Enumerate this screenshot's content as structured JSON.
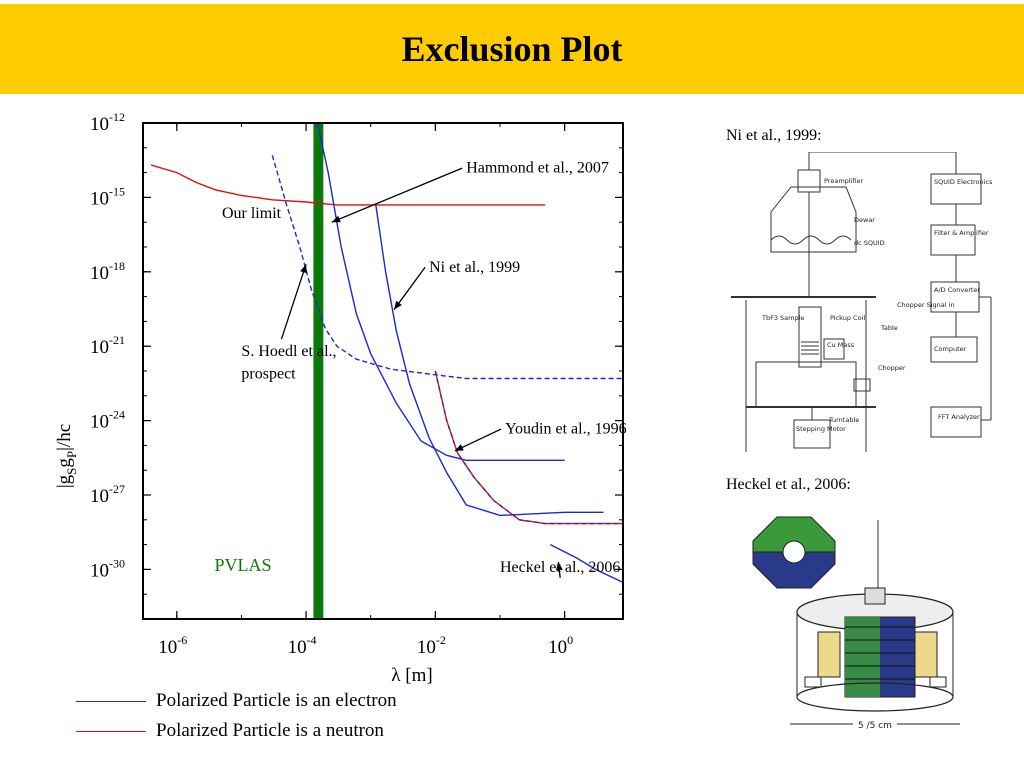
{
  "slide": {
    "title": "Exclusion Plot"
  },
  "chart_data": {
    "type": "line",
    "title": "",
    "xlabel": "λ [m]",
    "ylabel": "|g_S g_P|/hc",
    "xscale": "log",
    "yscale": "log",
    "xlim": [
      3e-07,
      8.0
    ],
    "ylim": [
      1e-32,
      1e-12
    ],
    "x_ticks": [
      {
        "value": 1e-06,
        "base": "10",
        "exp": "-6"
      },
      {
        "value": 0.0001,
        "base": "10",
        "exp": "-4"
      },
      {
        "value": 0.01,
        "base": "10",
        "exp": "-2"
      },
      {
        "value": 1,
        "base": "10",
        "exp": "0"
      }
    ],
    "y_ticks": [
      {
        "value": 1e-12,
        "base": "10",
        "exp": "-12"
      },
      {
        "value": 1e-15,
        "base": "10",
        "exp": "-15"
      },
      {
        "value": 1e-18,
        "base": "10",
        "exp": "-18"
      },
      {
        "value": 1e-21,
        "base": "10",
        "exp": "-21"
      },
      {
        "value": 1e-24,
        "base": "10",
        "exp": "-24"
      },
      {
        "value": 1e-27,
        "base": "10",
        "exp": "-27"
      },
      {
        "value": 1e-30,
        "base": "10",
        "exp": "-30"
      }
    ],
    "series": [
      {
        "name": "Our limit",
        "color": "#e01010",
        "dash": false,
        "points": [
          [
            4e-07,
            2e-14
          ],
          [
            1e-06,
            1e-14
          ],
          [
            2e-06,
            4e-15
          ],
          [
            4e-06,
            2e-15
          ],
          [
            1e-05,
            1.2e-15
          ],
          [
            3e-05,
            8e-16
          ],
          [
            0.0001,
            6.5e-16
          ],
          [
            0.0003,
            5e-16
          ],
          [
            0.002,
            5e-16
          ],
          [
            0.02,
            5e-16
          ],
          [
            0.5,
            5e-16
          ]
        ]
      },
      {
        "name": "S. Hoedl et al., prospect",
        "color": "#1a2ad0",
        "dash": true,
        "points": [
          [
            3e-05,
            5e-14
          ],
          [
            5e-05,
            5e-16
          ],
          [
            8e-05,
            1e-17
          ],
          [
            0.00012,
            2e-19
          ],
          [
            0.0002,
            5e-21
          ],
          [
            0.0003,
            1e-21
          ],
          [
            0.0006,
            3e-22
          ],
          [
            0.002,
            1.2e-22
          ],
          [
            0.01,
            7e-23
          ],
          [
            0.03,
            5e-23
          ],
          [
            1,
            5e-23
          ],
          [
            8,
            5e-23
          ]
        ]
      },
      {
        "name": "Hammond et al., 2007",
        "color": "#1a2ad0",
        "dash": false,
        "points": [
          [
            0.00015,
            1e-12
          ],
          [
            0.00022,
            1e-14
          ],
          [
            0.00035,
            1e-17
          ],
          [
            0.0006,
            2e-20
          ],
          [
            0.001,
            5e-22
          ],
          [
            0.0025,
            5e-24
          ],
          [
            0.006,
            1.5e-25
          ],
          [
            0.015,
            4e-26
          ],
          [
            0.03,
            2.5e-26
          ],
          [
            1,
            2.5e-26
          ]
        ]
      },
      {
        "name": "Ni et al., 1999",
        "color": "#1a2ad0",
        "dash": false,
        "points": [
          [
            0.0012,
            5e-16
          ],
          [
            0.0017,
            1e-18
          ],
          [
            0.0025,
            4e-21
          ],
          [
            0.004,
            3e-23
          ],
          [
            0.008,
            2e-25
          ],
          [
            0.015,
            8e-27
          ],
          [
            0.03,
            4e-28
          ],
          [
            0.1,
            1.5e-28
          ],
          [
            1,
            2e-28
          ],
          [
            4,
            2e-28
          ]
        ]
      },
      {
        "name": "Youdin et al., 1996",
        "color": "#e01010",
        "dash": false,
        "overlay": "#1a2ad0",
        "points": [
          [
            0.01,
            1e-22
          ],
          [
            0.015,
            1e-24
          ],
          [
            0.022,
            5e-26
          ],
          [
            0.04,
            5e-27
          ],
          [
            0.08,
            6e-28
          ],
          [
            0.2,
            1e-28
          ],
          [
            0.5,
            7e-29
          ],
          [
            8,
            7e-29
          ]
        ]
      },
      {
        "name": "Heckel et al., 2006",
        "color": "#1a2ad0",
        "dash": false,
        "points": [
          [
            0.6,
            1e-29
          ],
          [
            1.5,
            3e-30
          ],
          [
            3,
            1e-30
          ],
          [
            8,
            3e-31
          ]
        ]
      }
    ],
    "band": {
      "label": "PVLAS",
      "color": "#0a7a0a",
      "x_from": 0.00013,
      "x_to": 0.000185
    },
    "annotations": [
      {
        "text": "Hammond et al., 2007",
        "x": 0.03,
        "y": 1e-14,
        "arrow_to": [
          0.00025,
          1e-16
        ]
      },
      {
        "text": "Our limit",
        "x": 5e-06,
        "y": 1.5e-16
      },
      {
        "text": "Ni et al., 1999",
        "x": 0.008,
        "y": 1e-18,
        "arrow_to": [
          0.0023,
          3e-20
        ]
      },
      {
        "text": "S. Hoedl et al.,",
        "x": 1e-05,
        "y": 4e-22
      },
      {
        "text": "prospect",
        "x": 1e-05,
        "y": 5e-23
      },
      {
        "text": "Youdin et al., 1996",
        "x": 0.12,
        "y": 3e-25,
        "arrow_to": [
          0.02,
          6e-26
        ]
      },
      {
        "text": "Heckel et al., 2006",
        "x": 0.1,
        "y": 8e-31,
        "arrow_to": [
          0.8,
          2e-30
        ]
      }
    ],
    "legend": [
      {
        "label": "Polarized Particle is an electron",
        "color": "#1a2ad0"
      },
      {
        "label": "Polarized Particle is a neutron",
        "color": "#e01010"
      }
    ]
  },
  "side_figures": [
    {
      "caption": "Ni et al., 1999:",
      "labels": [
        "Preamplifier",
        "SQUID Electronics",
        "Dewar",
        "dc SQUID",
        "Filter & Amplifier",
        "A/D Converter",
        "TbF3 Sample",
        "Pickup Coil",
        "Cu Mass",
        "Table",
        "Chopper Signal in",
        "Computer",
        "Chopper",
        "Turntable",
        "Stepping Motor",
        "FFT Analyzer"
      ]
    },
    {
      "caption": "Heckel et al., 2006:",
      "labels": [
        "5 /5 cm"
      ]
    }
  ]
}
